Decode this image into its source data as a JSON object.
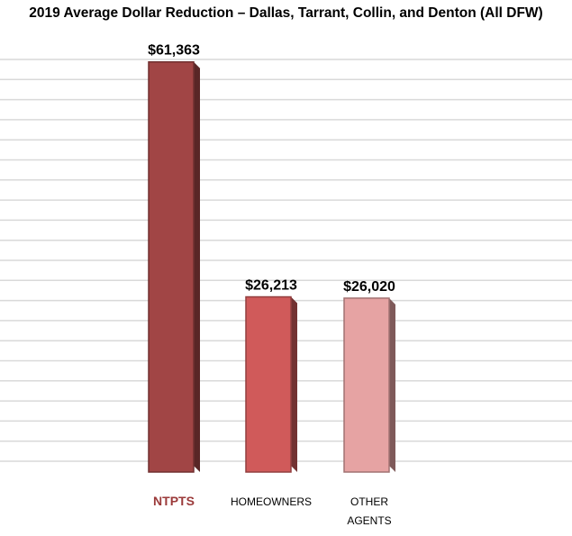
{
  "chart_data": {
    "type": "bar",
    "title": "2019 Average Dollar Reduction – Dallas, Tarrant, Collin, and Denton (All DFW)",
    "categories": [
      "NTPTS",
      "HOMEOWNERS",
      "OTHER AGENTS"
    ],
    "category_lines": [
      [
        "NTPTS"
      ],
      [
        "HOMEOWNERS"
      ],
      [
        "OTHER",
        "AGENTS"
      ]
    ],
    "values": [
      61363,
      26213,
      26020
    ],
    "value_labels": [
      "$61,363",
      "$26,213",
      "$26,020"
    ],
    "colors": [
      "#a14545",
      "#d05a5a",
      "#e6a3a3"
    ],
    "highlight_category": "NTPTS",
    "ylim": [
      0,
      62000
    ],
    "grid": true,
    "legend": "none",
    "xlabel": "",
    "ylabel": ""
  }
}
